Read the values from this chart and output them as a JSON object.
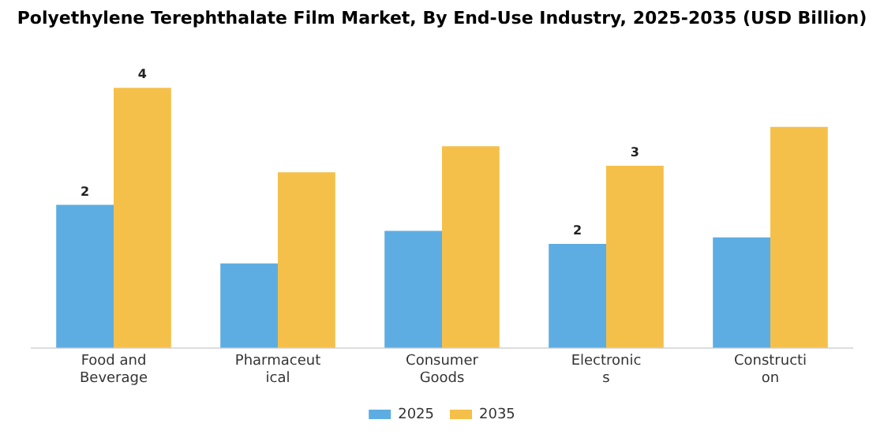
{
  "chart_data": {
    "type": "bar",
    "title": "Polyethylene Terephthalate Film Market, By End-Use Industry, 2025-2035 (USD Billion)",
    "categories": [
      "Food and Beverage",
      "Pharmaceutical",
      "Consumer Goods",
      "Electronics",
      "Construction"
    ],
    "series": [
      {
        "name": "2025",
        "color": "#5dade2",
        "values": [
          2.2,
          1.3,
          1.8,
          1.6,
          1.7
        ],
        "value_labels": [
          "2",
          null,
          null,
          "2",
          null
        ]
      },
      {
        "name": "2035",
        "color": "#f5c04a",
        "values": [
          4.0,
          2.7,
          3.1,
          2.8,
          3.4
        ],
        "value_labels": [
          "4",
          null,
          null,
          "3",
          null
        ]
      }
    ],
    "legend": "bottom",
    "grid": false
  }
}
